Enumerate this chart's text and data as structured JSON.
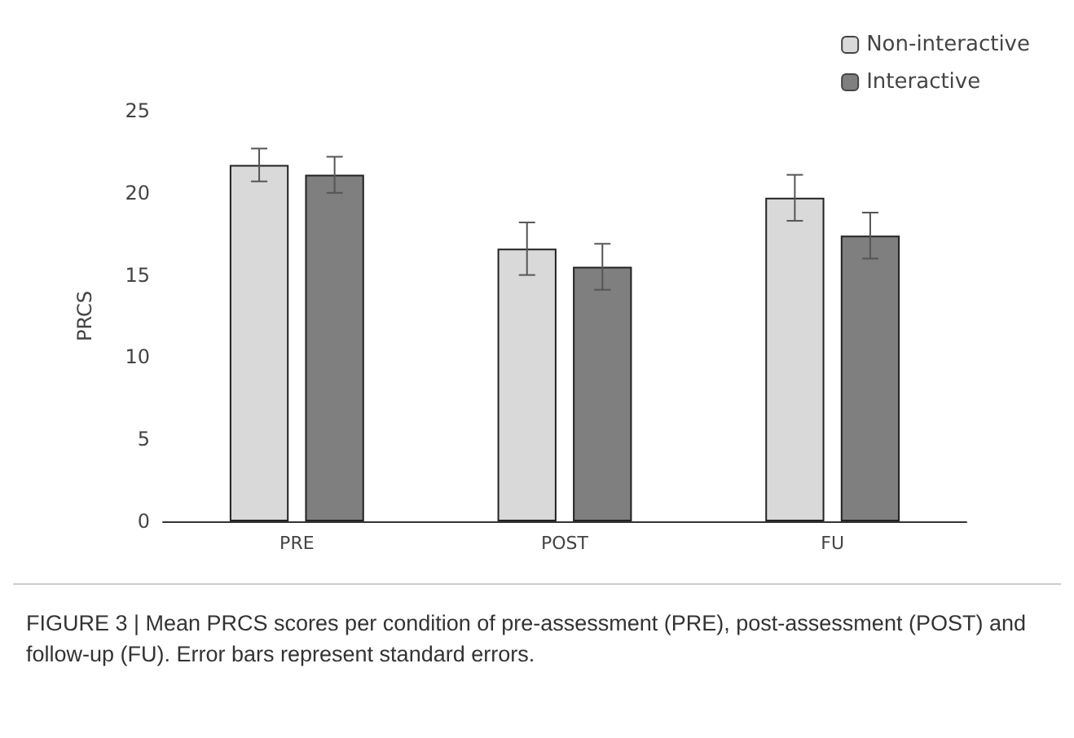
{
  "chart_data": {
    "type": "bar",
    "ylabel": "PRCS",
    "categories": [
      "PRE",
      "POST",
      "FU"
    ],
    "series": [
      {
        "name": "Non-interactive",
        "color": "#d9d9d9",
        "values": [
          21.7,
          16.6,
          19.7
        ],
        "errors": [
          1.0,
          1.6,
          1.4
        ]
      },
      {
        "name": "Interactive",
        "color": "#7f7f7f",
        "values": [
          21.1,
          15.5,
          17.4
        ],
        "errors": [
          1.1,
          1.4,
          1.4
        ]
      }
    ],
    "ylim": [
      0,
      25
    ],
    "yticks": [
      0,
      5,
      10,
      15,
      20,
      25
    ],
    "grid": false,
    "legend": "top right",
    "annotations": [
      "FIGURE 3 | Mean PRCS scores per condition of pre-assessment (PRE), post-assessment (POST) and follow-up (FU). Error bars represent standard errors."
    ]
  }
}
